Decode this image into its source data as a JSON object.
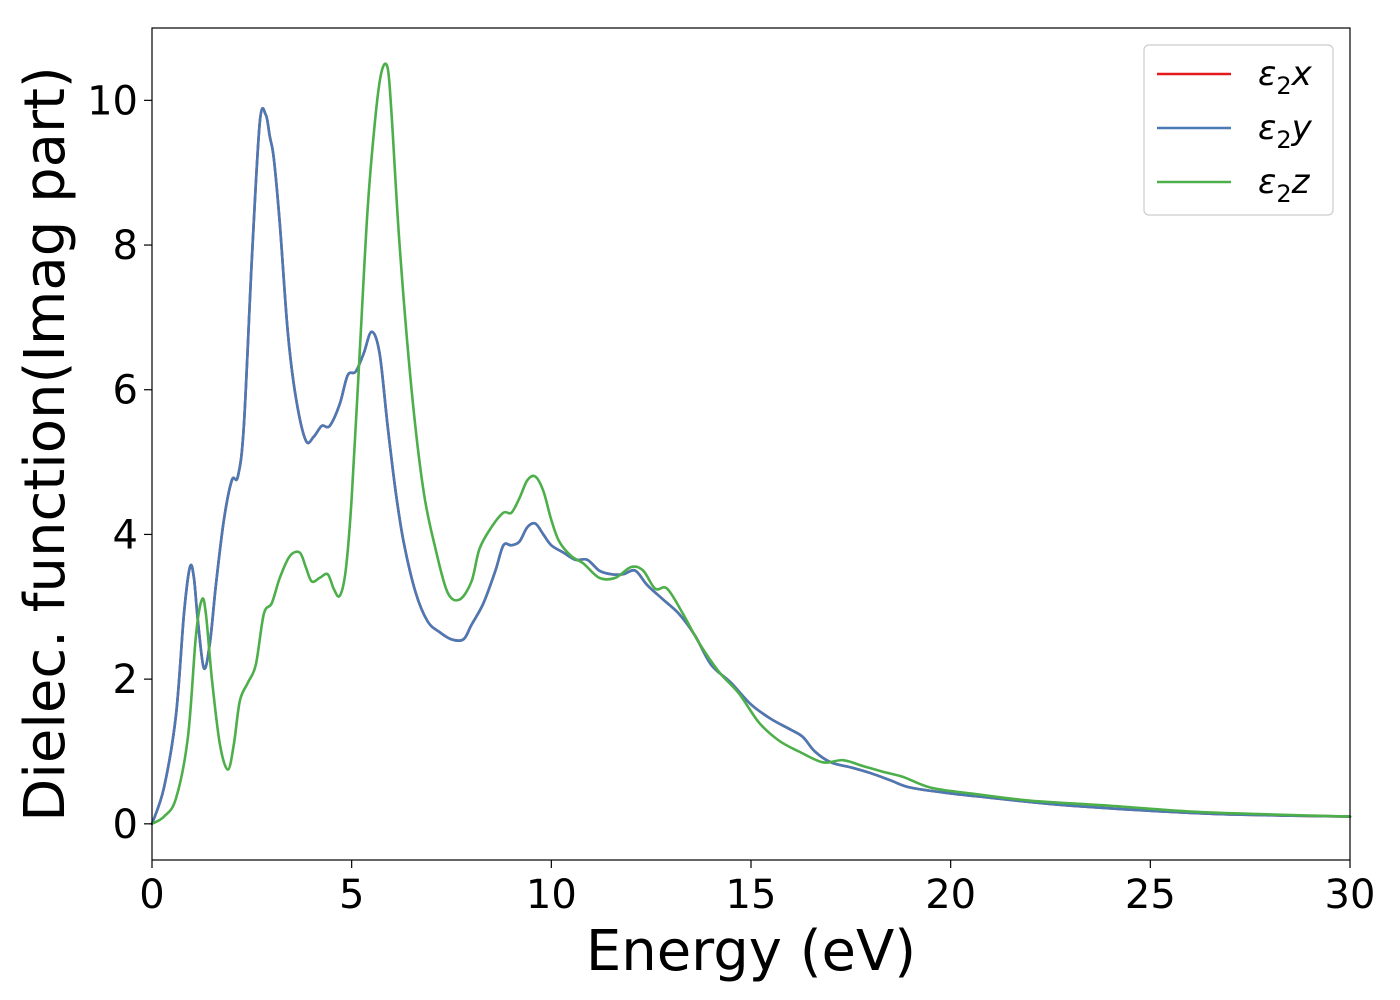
{
  "chart_data": {
    "type": "line",
    "xlabel": "Energy (eV)",
    "ylabel": "Dielec. function(Imag part)",
    "xlim": [
      0,
      30
    ],
    "ylim": [
      -0.5,
      11
    ],
    "xticks": [
      0,
      5,
      10,
      15,
      20,
      25,
      30
    ],
    "yticks": [
      0,
      2,
      4,
      6,
      8,
      10
    ],
    "grid": false,
    "legend_position": "top-right",
    "series": [
      {
        "name": "ε2x",
        "legend_base": "ε",
        "legend_sub": "2",
        "legend_var": "x",
        "color": "#e41a1c",
        "x": [
          0,
          0.3,
          0.6,
          0.8,
          0.95,
          1.05,
          1.15,
          1.3,
          1.45,
          1.6,
          1.8,
          2.0,
          2.15,
          2.3,
          2.5,
          2.7,
          2.85,
          2.95,
          3.05,
          3.2,
          3.4,
          3.6,
          3.85,
          4.05,
          4.25,
          4.45,
          4.7,
          4.9,
          5.1,
          5.3,
          5.5,
          5.7,
          5.9,
          6.1,
          6.3,
          6.6,
          6.9,
          7.2,
          7.5,
          7.8,
          8.0,
          8.3,
          8.6,
          8.8,
          9.0,
          9.2,
          9.4,
          9.6,
          9.8,
          10.0,
          10.3,
          10.6,
          10.9,
          11.2,
          11.5,
          11.8,
          12.1,
          12.4,
          12.8,
          13.2,
          13.6,
          14.0,
          14.5,
          15.0,
          15.5,
          16.0,
          16.3,
          16.6,
          17.0,
          17.5,
          18.0,
          18.5,
          19.0,
          20.0,
          21.0,
          22.0,
          23.0,
          25.0,
          27.0,
          30.0
        ],
        "y": [
          0,
          0.5,
          1.5,
          2.9,
          3.55,
          3.4,
          2.8,
          2.15,
          2.5,
          3.3,
          4.2,
          4.75,
          4.8,
          5.5,
          7.8,
          9.7,
          9.8,
          9.5,
          9.2,
          8.3,
          6.8,
          5.9,
          5.3,
          5.35,
          5.5,
          5.5,
          5.8,
          6.2,
          6.25,
          6.5,
          6.8,
          6.5,
          5.5,
          4.6,
          3.9,
          3.2,
          2.8,
          2.65,
          2.55,
          2.55,
          2.75,
          3.05,
          3.5,
          3.85,
          3.85,
          3.9,
          4.1,
          4.15,
          4.0,
          3.85,
          3.75,
          3.65,
          3.65,
          3.5,
          3.45,
          3.45,
          3.5,
          3.3,
          3.1,
          2.9,
          2.6,
          2.2,
          1.95,
          1.65,
          1.45,
          1.3,
          1.2,
          1.0,
          0.85,
          0.78,
          0.7,
          0.6,
          0.5,
          0.42,
          0.36,
          0.3,
          0.25,
          0.18,
          0.13,
          0.1
        ]
      },
      {
        "name": "ε2y",
        "legend_base": "ε",
        "legend_sub": "2",
        "legend_var": "y",
        "color": "#4a7ab5",
        "x": [
          0,
          0.3,
          0.6,
          0.8,
          0.95,
          1.05,
          1.15,
          1.3,
          1.45,
          1.6,
          1.8,
          2.0,
          2.15,
          2.3,
          2.5,
          2.7,
          2.85,
          2.95,
          3.05,
          3.2,
          3.4,
          3.6,
          3.85,
          4.05,
          4.25,
          4.45,
          4.7,
          4.9,
          5.1,
          5.3,
          5.5,
          5.7,
          5.9,
          6.1,
          6.3,
          6.6,
          6.9,
          7.2,
          7.5,
          7.8,
          8.0,
          8.3,
          8.6,
          8.8,
          9.0,
          9.2,
          9.4,
          9.6,
          9.8,
          10.0,
          10.3,
          10.6,
          10.9,
          11.2,
          11.5,
          11.8,
          12.1,
          12.4,
          12.8,
          13.2,
          13.6,
          14.0,
          14.5,
          15.0,
          15.5,
          16.0,
          16.3,
          16.6,
          17.0,
          17.5,
          18.0,
          18.5,
          19.0,
          20.0,
          21.0,
          22.0,
          23.0,
          25.0,
          27.0,
          30.0
        ],
        "y": [
          0,
          0.5,
          1.5,
          2.9,
          3.55,
          3.4,
          2.8,
          2.15,
          2.5,
          3.3,
          4.2,
          4.75,
          4.8,
          5.5,
          7.8,
          9.7,
          9.8,
          9.5,
          9.2,
          8.3,
          6.8,
          5.9,
          5.3,
          5.35,
          5.5,
          5.5,
          5.8,
          6.2,
          6.25,
          6.5,
          6.8,
          6.5,
          5.5,
          4.6,
          3.9,
          3.2,
          2.8,
          2.65,
          2.55,
          2.55,
          2.75,
          3.05,
          3.5,
          3.85,
          3.85,
          3.9,
          4.1,
          4.15,
          4.0,
          3.85,
          3.75,
          3.65,
          3.65,
          3.5,
          3.45,
          3.45,
          3.5,
          3.3,
          3.1,
          2.9,
          2.6,
          2.2,
          1.95,
          1.65,
          1.45,
          1.3,
          1.2,
          1.0,
          0.85,
          0.78,
          0.7,
          0.6,
          0.5,
          0.42,
          0.36,
          0.3,
          0.25,
          0.18,
          0.13,
          0.1
        ]
      },
      {
        "name": "ε2z",
        "legend_base": "ε",
        "legend_sub": "2",
        "legend_var": "z",
        "color": "#4daf4a",
        "x": [
          0,
          0.3,
          0.6,
          0.9,
          1.1,
          1.25,
          1.35,
          1.5,
          1.7,
          1.9,
          2.05,
          2.2,
          2.4,
          2.6,
          2.8,
          3.0,
          3.2,
          3.45,
          3.7,
          3.85,
          4.0,
          4.2,
          4.4,
          4.55,
          4.7,
          4.85,
          5.0,
          5.2,
          5.4,
          5.6,
          5.75,
          5.9,
          6.0,
          6.2,
          6.5,
          6.8,
          7.1,
          7.4,
          7.7,
          8.0,
          8.2,
          8.5,
          8.8,
          9.0,
          9.2,
          9.4,
          9.6,
          9.8,
          10.0,
          10.2,
          10.5,
          10.8,
          11.2,
          11.6,
          12.0,
          12.3,
          12.6,
          12.9,
          13.3,
          13.7,
          14.2,
          14.7,
          15.2,
          15.7,
          16.2,
          16.8,
          17.3,
          17.8,
          18.3,
          18.8,
          19.5,
          20.5,
          22.0,
          24.0,
          26.0,
          28.0,
          30.0
        ],
        "y": [
          0,
          0.1,
          0.35,
          1.2,
          2.6,
          3.1,
          2.9,
          2.0,
          1.1,
          0.75,
          1.1,
          1.7,
          1.95,
          2.2,
          2.9,
          3.05,
          3.4,
          3.7,
          3.75,
          3.55,
          3.35,
          3.4,
          3.45,
          3.25,
          3.15,
          3.5,
          4.5,
          6.5,
          8.5,
          9.8,
          10.4,
          10.45,
          9.8,
          8.0,
          6.0,
          4.6,
          3.8,
          3.2,
          3.1,
          3.35,
          3.8,
          4.1,
          4.3,
          4.3,
          4.5,
          4.75,
          4.8,
          4.6,
          4.2,
          3.9,
          3.7,
          3.6,
          3.4,
          3.4,
          3.55,
          3.5,
          3.25,
          3.25,
          2.9,
          2.5,
          2.1,
          1.8,
          1.4,
          1.15,
          1.0,
          0.85,
          0.88,
          0.8,
          0.72,
          0.65,
          0.5,
          0.42,
          0.32,
          0.25,
          0.17,
          0.13,
          0.1
        ]
      }
    ]
  }
}
